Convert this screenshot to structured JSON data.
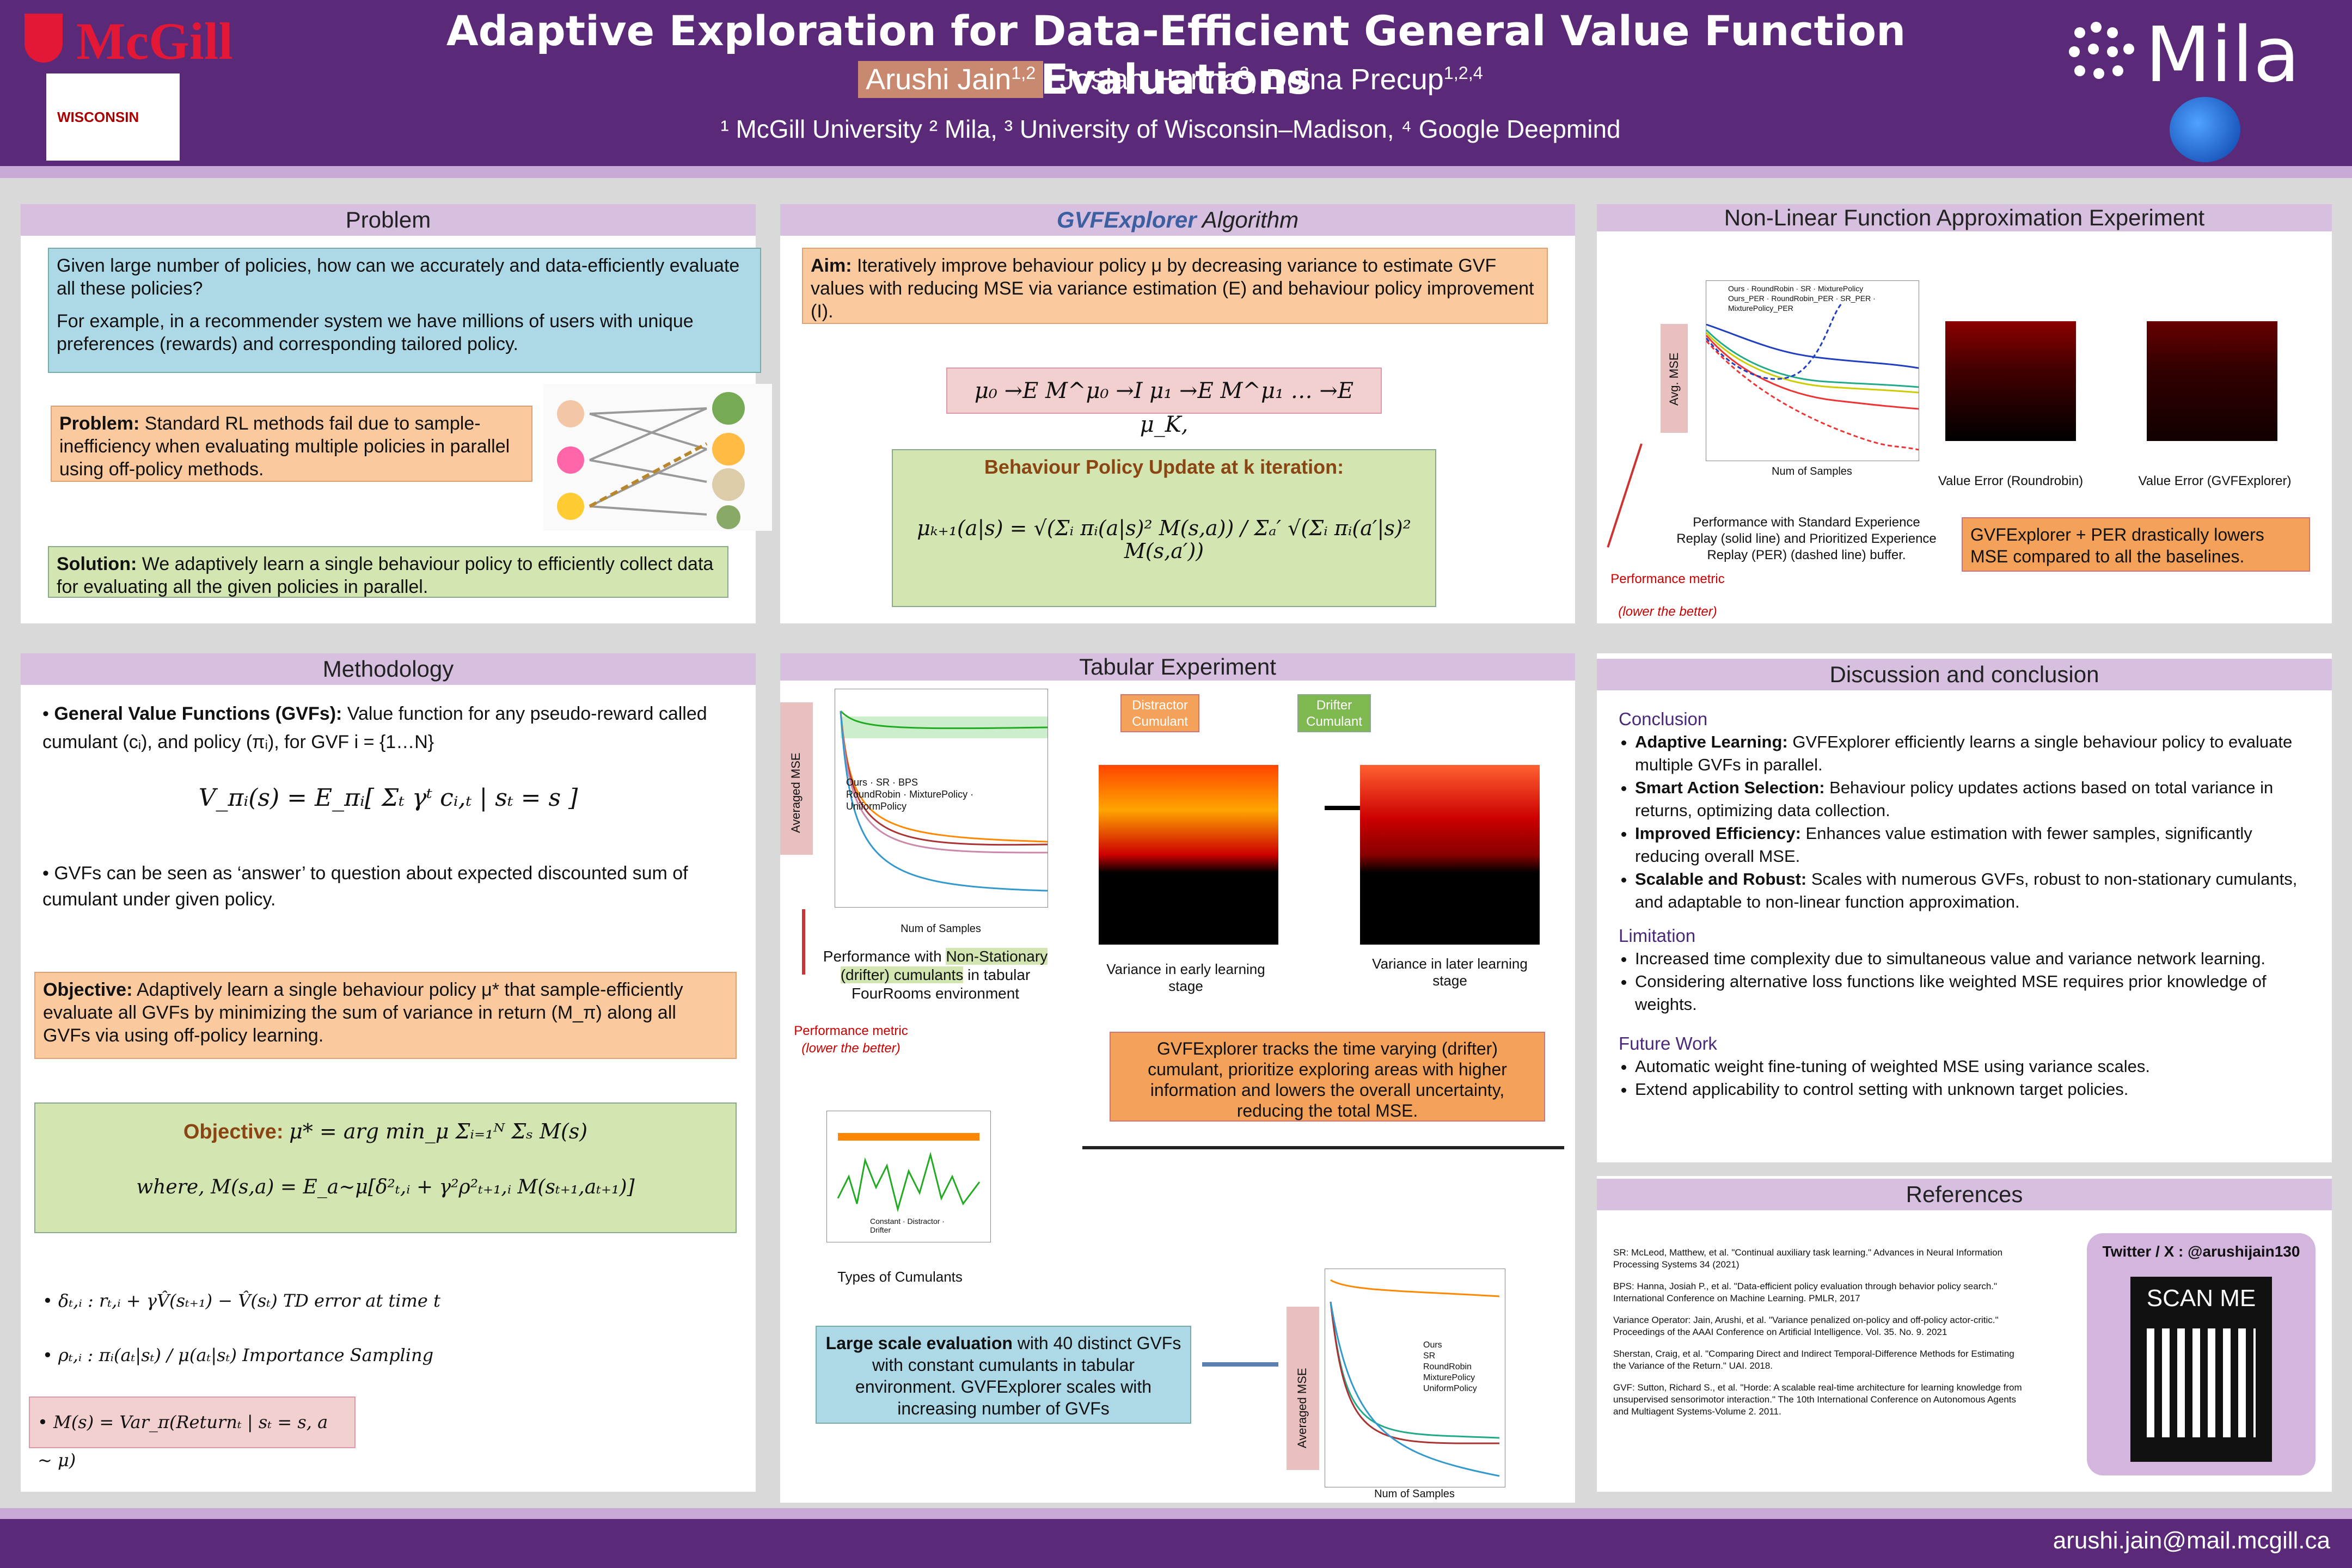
{
  "header": {
    "title": "Adaptive Exploration for Data-Efficient General Value Function Evaluations",
    "author1": "Arushi Jain",
    "author1_sup": "1,2",
    "author_rest": ", Josiah Hanna",
    "author2_sup": "3",
    "author3": ", Doina Precup",
    "author3_sup": "1,2,4",
    "affiliations": "¹ McGill University ² Mila, ³ University of Wisconsin–Madison, ⁴ Google Deepmind",
    "logo_mcgill": "McGill",
    "logo_wisconsin": "WISCONSIN",
    "logo_mila": "Mila"
  },
  "problem": {
    "heading": "Problem",
    "q1": "Given large number of policies, how can we accurately and data-efficiently evaluate all these policies?",
    "q2": "For example, in a recommender system we have millions of users with unique preferences (rewards) and corresponding tailored policy.",
    "problem_label": "Problem:",
    "problem_text": " Standard RL methods fail due to sample-inefficiency when evaluating multiple policies in parallel using off-policy methods.",
    "solution_label": "Solution:",
    "solution_text": " We adaptively learn a single behaviour policy to efficiently collect data for evaluating all the given policies in parallel."
  },
  "algorithm": {
    "heading_name": "GVFExplorer",
    "heading_rest": " Algorithm",
    "aim_label": "Aim:",
    "aim_text": " Iteratively improve behaviour policy μ by decreasing variance to estimate GVF values with reducing MSE via variance estimation (E) and behaviour policy improvement (I).",
    "chain": "μ₀ →E M^μ₀ →I μ₁ →E M^μ₁ … →E μ_K,",
    "update_title": "Behaviour Policy Update at k iteration:",
    "update_eq": "μₖ₊₁(a|s) = √(Σᵢ πᵢ(a|s)² M(s,a)) / Σₐ′ √(Σᵢ πᵢ(a′|s)² M(s,a′))"
  },
  "nonlinear": {
    "heading": "Non-Linear Function Approximation Experiment",
    "ylabel": "Avg. MSE",
    "xlabel": "Num of Samples",
    "legend": [
      "Ours",
      "RoundRobin",
      "SR",
      "MixturePolicy",
      "Ours_PER",
      "RoundRobin_PER",
      "SR_PER",
      "MixturePolicy_PER"
    ],
    "caption": "Performance with Standard Experience Replay (solid line) and Prioritized Experience Replay (PER) (dashed line) buffer.",
    "heat1_caption": "Value Error (Roundrobin)",
    "heat2_caption": "Value Error (GVFExplorer)",
    "metric": "Performance metric",
    "metric_note": "(lower the better)",
    "result": "GVFExplorer + PER drastically lowers MSE compared to all the baselines."
  },
  "methodology": {
    "heading": "Methodology",
    "gvf_label": "General Value Functions (GVFs):",
    "gvf_text": " Value function for any pseudo-reward called cumulant (cᵢ), and policy (πᵢ), for GVF i = {1…N}",
    "value_eq": "V_πᵢ(s) = E_πᵢ[ Σₜ γᵗ cᵢ,ₜ | sₜ = s ]",
    "gvf_answer": "GVFs can be seen as ‘answer’ to question about expected discounted sum of cumulant under given policy.",
    "obj_label": "Objective:",
    "obj_text": " Adaptively learn a single behaviour policy μ* that sample-efficiently evaluate all GVFs by minimizing the sum of variance in return (M_π) along all GVFs via using off-policy learning.",
    "obj2_label": "Objective:",
    "obj2_eq": "μ* = arg min_μ Σᵢ₌₁ᴺ Σₛ M(s)",
    "where_eq": "where,  M(s,a) = E_a~μ[δ²ₜ,ᵢ + γ²ρ²ₜ₊₁,ᵢ M(sₜ₊₁,aₜ₊₁)]",
    "td": "δₜ,ᵢ : rₜ,ᵢ + γV̂(sₜ₊₁) − V̂(sₜ)  TD error at time t",
    "is": "ρₜ,ᵢ : πᵢ(aₜ|sₜ) / μ(aₜ|sₜ)  Importance Sampling",
    "var": "M(s) = Var_π(Returnₜ | sₜ = s, a ~ μ)"
  },
  "tabular": {
    "heading": "Tabular Experiment",
    "ylabel": "Averaged MSE",
    "xlabel": "Num of Samples",
    "legend": [
      "Ours",
      "SR",
      "BPS",
      "RoundRobin",
      "MixturePolicy",
      "UniformPolicy"
    ],
    "caption_a": "Performance with ",
    "caption_hl": "Non-Stationary (drifter) cumulants",
    "caption_b": " in tabular FourRooms environment",
    "metric": "Performance metric",
    "metric_note": "(lower the better)",
    "distractor": "Distractor Cumulant",
    "drifter": "Drifter Cumulant",
    "early": "Variance in early learning stage",
    "later": "Variance in later learning stage",
    "types": "Types of Cumulants",
    "types_legend": [
      "Constant",
      "Distractor",
      "Drifter"
    ],
    "tracks": "GVFExplorer tracks the time varying (drifter) cumulant, prioritize exploring areas with higher information and lowers the overall uncertainty, reducing the total MSE.",
    "large_label": "Large scale evaluation",
    "large_text": " with 40 distinct GVFs with constant cumulants in tabular environment. GVFExplorer scales with increasing number of GVFs",
    "legend2": [
      "Ours",
      "SR",
      "RoundRobin",
      "MixturePolicy",
      "UniformPolicy"
    ]
  },
  "discussion": {
    "heading": "Discussion and conclusion",
    "conclusion": "Conclusion",
    "items": [
      {
        "label": "Adaptive Learning:",
        "text": " GVFExplorer efficiently learns a single behaviour policy to evaluate multiple GVFs in parallel."
      },
      {
        "label": "Smart Action Selection:",
        "text": " Behaviour policy updates actions based on total variance in returns, optimizing data collection."
      },
      {
        "label": "Improved Efficiency:",
        "text": " Enhances value estimation with fewer samples, significantly reducing overall MSE."
      },
      {
        "label": "Scalable and Robust:",
        "text": " Scales with numerous GVFs, robust to non-stationary cumulants, and adaptable to non-linear function approximation."
      }
    ],
    "limitation": "Limitation",
    "lim_items": [
      "Increased time complexity due to simultaneous value and variance network learning.",
      "Considering alternative loss functions like weighted MSE requires prior knowledge of weights."
    ],
    "future": "Future Work",
    "future_items": [
      "Automatic weight fine-tuning of weighted MSE using variance scales.",
      "Extend applicability to control setting with unknown target policies."
    ]
  },
  "references": {
    "heading": "References",
    "items": [
      "SR: McLeod, Matthew, et al. \"Continual auxiliary task learning.\" Advances in Neural Information Processing Systems 34 (2021)",
      "BPS: Hanna, Josiah P., et al. \"Data-efficient policy evaluation through behavior policy search.\" International Conference on Machine Learning. PMLR, 2017",
      "Variance Operator: Jain, Arushi, et al. \"Variance penalized on-policy and off-policy actor-critic.\" Proceedings of the AAAI Conference on Artificial Intelligence. Vol. 35. No. 9. 2021",
      "Sherstan, Craig, et al. \"Comparing Direct and Indirect Temporal-Difference Methods for Estimating the Variance of the Return.\" UAI. 2018.",
      "GVF: Sutton, Richard S., et al. \"Horde: A scalable real-time architecture for learning knowledge from unsupervised sensorimotor interaction.\" The 10th International Conference on Autonomous Agents and Multiagent Systems-Volume 2. 2011."
    ],
    "twitter": "Twitter / X : @arushijain130",
    "scan": "SCAN ME"
  },
  "footer": {
    "email": "arushi.jain@mail.mcgill.ca"
  }
}
